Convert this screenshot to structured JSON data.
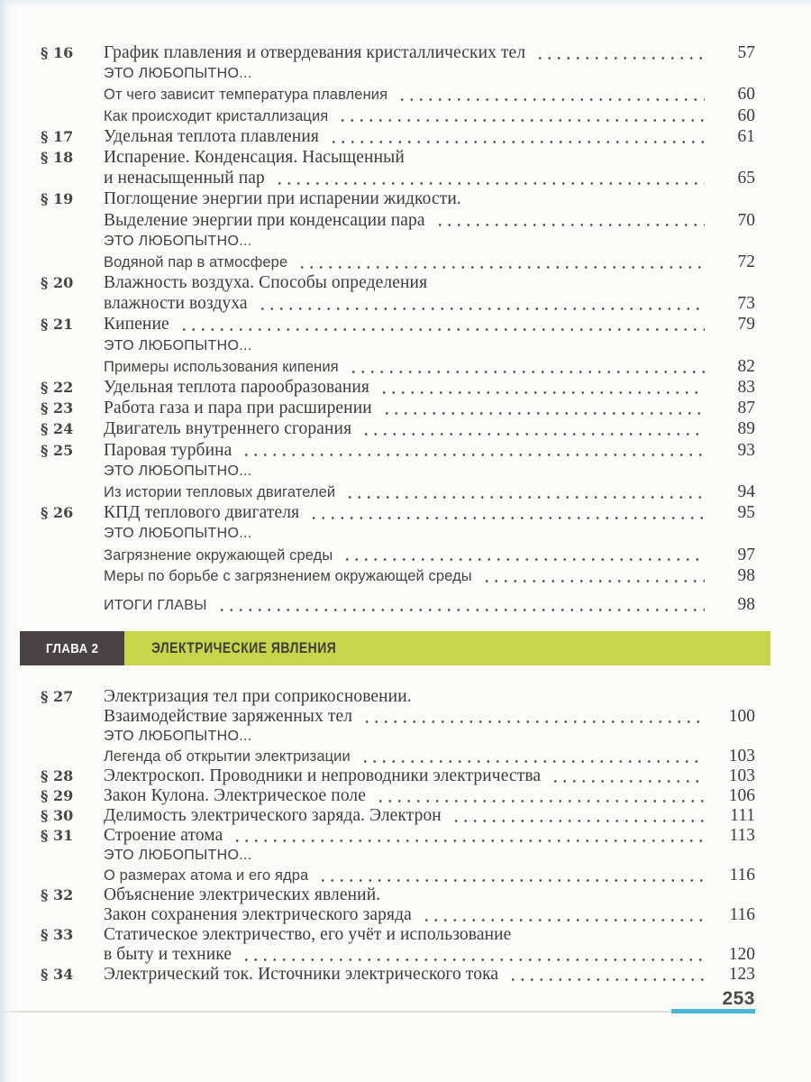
{
  "page": {
    "number": "253"
  },
  "colors": {
    "chapter_bar_green": "#c8d44b",
    "chapter_block_dark": "#4a4245",
    "footer_accent_blue": "#4ab6d9"
  },
  "chapter2": {
    "label": "ГЛАВА 2",
    "title": "ЭЛЕКТРИЧЕСКИЕ ЯВЛЕНИЯ"
  },
  "toc_chapter1": [
    {
      "label": "§ 16",
      "text": "График плавления и отвердевания кристаллических тел",
      "page": "57",
      "style": "serif",
      "dots": true
    },
    {
      "label": "",
      "text": "ЭТО ЛЮБОПЫТНО...",
      "page": "",
      "style": "caps",
      "dots": false
    },
    {
      "label": "",
      "text": "От чего зависит температура плавления",
      "page": "60",
      "style": "sans",
      "dots": true
    },
    {
      "label": "",
      "text": "Как происходит кристаллизация",
      "page": "60",
      "style": "sans",
      "dots": true
    },
    {
      "label": "§ 17",
      "text": "Удельная теплота плавления",
      "page": "61",
      "style": "serif",
      "dots": true
    },
    {
      "label": "§ 18",
      "text": "Испарение. Конденсация. Насыщенный",
      "page": "",
      "style": "serif",
      "dots": false
    },
    {
      "label": "",
      "text": "и ненасыщенный пар",
      "page": "65",
      "style": "serif",
      "dots": true
    },
    {
      "label": "§ 19",
      "text": "Поглощение энергии при испарении жидкости.",
      "page": "",
      "style": "serif",
      "dots": false
    },
    {
      "label": "",
      "text": "Выделение энергии при конденсации пара",
      "page": "70",
      "style": "serif",
      "dots": true
    },
    {
      "label": "",
      "text": "ЭТО ЛЮБОПЫТНО...",
      "page": "",
      "style": "caps",
      "dots": false
    },
    {
      "label": "",
      "text": "Водяной пар в атмосфере",
      "page": "72",
      "style": "sans",
      "dots": true
    },
    {
      "label": "§ 20",
      "text": "Влажность воздуха. Способы определения",
      "page": "",
      "style": "serif",
      "dots": false
    },
    {
      "label": "",
      "text": "влажности воздуха",
      "page": "73",
      "style": "serif",
      "dots": true
    },
    {
      "label": "§ 21",
      "text": "Кипение",
      "page": "79",
      "style": "serif",
      "dots": true
    },
    {
      "label": "",
      "text": "ЭТО ЛЮБОПЫТНО...",
      "page": "",
      "style": "caps",
      "dots": false
    },
    {
      "label": "",
      "text": "Примеры использования кипения",
      "page": "82",
      "style": "sans",
      "dots": true
    },
    {
      "label": "§ 22",
      "text": "Удельная теплота парообразования",
      "page": "83",
      "style": "serif",
      "dots": true
    },
    {
      "label": "§ 23",
      "text": "Работа газа и пара при расширении",
      "page": "87",
      "style": "serif",
      "dots": true
    },
    {
      "label": "§ 24",
      "text": "Двигатель внутреннего сгорания",
      "page": "89",
      "style": "serif",
      "dots": true
    },
    {
      "label": "§ 25",
      "text": "Паровая турбина",
      "page": "93",
      "style": "serif",
      "dots": true
    },
    {
      "label": "",
      "text": "ЭТО ЛЮБОПЫТНО...",
      "page": "",
      "style": "caps",
      "dots": false
    },
    {
      "label": "",
      "text": "Из истории тепловых двигателей",
      "page": "94",
      "style": "sans",
      "dots": true
    },
    {
      "label": "§ 26",
      "text": "КПД теплового двигателя",
      "page": "95",
      "style": "serif",
      "dots": true
    },
    {
      "label": "",
      "text": "ЭТО ЛЮБОПЫТНО...",
      "page": "",
      "style": "caps",
      "dots": false
    },
    {
      "label": "",
      "text": "Загрязнение окружающей среды",
      "page": "97",
      "style": "sans",
      "dots": true
    },
    {
      "label": "",
      "text": "Меры по борьбе с загрязнением окружающей среды",
      "page": "98",
      "style": "sans",
      "dots": true
    },
    {
      "label": "",
      "text": "ИТОГИ ГЛАВЫ",
      "page": "98",
      "style": "caps",
      "dots": true,
      "gap": true
    }
  ],
  "toc_chapter2": [
    {
      "label": "§ 27",
      "text": "Электризация тел при соприкосновении.",
      "page": "",
      "style": "serif",
      "dots": false
    },
    {
      "label": "",
      "text": "Взаимодействие заряженных тел",
      "page": "100",
      "style": "serif",
      "dots": true
    },
    {
      "label": "",
      "text": "ЭТО ЛЮБОПЫТНО...",
      "page": "",
      "style": "caps",
      "dots": false
    },
    {
      "label": "",
      "text": "Легенда об открытии электризации",
      "page": "103",
      "style": "sans",
      "dots": true
    },
    {
      "label": "§ 28",
      "text": "Электроскоп. Проводники и непроводники электричества",
      "page": "103",
      "style": "serif",
      "dots": true
    },
    {
      "label": "§ 29",
      "text": "Закон Кулона. Электрическое поле",
      "page": "106",
      "style": "serif",
      "dots": true
    },
    {
      "label": "§ 30",
      "text": "Делимость электрического заряда. Электрон",
      "page": "111",
      "style": "serif",
      "dots": true
    },
    {
      "label": "§ 31",
      "text": "Строение атома",
      "page": "113",
      "style": "serif",
      "dots": true
    },
    {
      "label": "",
      "text": "ЭТО ЛЮБОПЫТНО...",
      "page": "",
      "style": "caps",
      "dots": false
    },
    {
      "label": "",
      "text": "О размерах атома и его ядра",
      "page": "116",
      "style": "sans",
      "dots": true
    },
    {
      "label": "§ 32",
      "text": "Объяснение электрических явлений.",
      "page": "",
      "style": "serif",
      "dots": false
    },
    {
      "label": "",
      "text": "Закон сохранения электрического заряда",
      "page": "116",
      "style": "serif",
      "dots": true
    },
    {
      "label": "§ 33",
      "text": "Статическое электричество, его учёт и использование",
      "page": "",
      "style": "serif",
      "dots": false
    },
    {
      "label": "",
      "text": "в быту и технике",
      "page": "120",
      "style": "serif",
      "dots": true
    },
    {
      "label": "§ 34",
      "text": "Электрический ток. Источники электрического тока",
      "page": "123",
      "style": "serif",
      "dots": true
    }
  ]
}
